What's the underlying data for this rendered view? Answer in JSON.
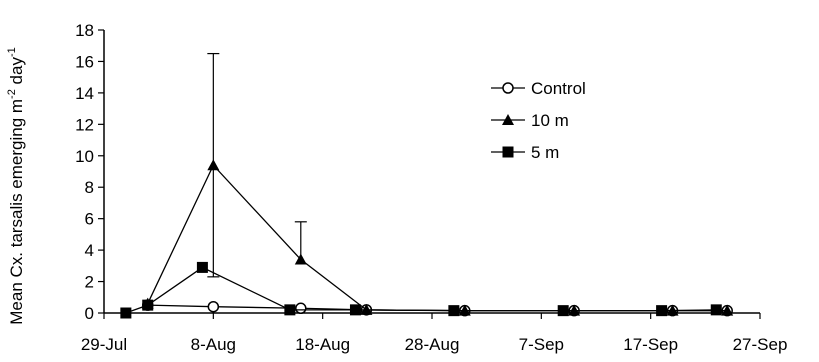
{
  "chart_data": {
    "type": "line",
    "title": "",
    "xlabel": "",
    "ylabel": "Mean Cx. tarsalis emerging m",
    "ylabel_sup1": "-2",
    "ylabel_mid": " day",
    "ylabel_sup2": "-1",
    "xlim": [
      "2000-07-29",
      "2000-09-27"
    ],
    "ylim": [
      0,
      18
    ],
    "x_ticks": [
      "29-Jul",
      "8-Aug",
      "18-Aug",
      "28-Aug",
      "7-Sep",
      "17-Sep",
      "27-Sep"
    ],
    "y_ticks": [
      "0",
      "2",
      "4",
      "6",
      "8",
      "10",
      "12",
      "14",
      "16",
      "18"
    ],
    "grid": false,
    "legend_position": "top-right",
    "series": [
      {
        "name": "Control",
        "marker": "circle-open",
        "x": [
          "2000-08-02",
          "2000-08-08",
          "2000-08-16",
          "2000-08-22",
          "2000-08-31",
          "2000-09-10",
          "2000-09-19",
          "2000-09-24"
        ],
        "y": [
          0.5,
          0.4,
          0.3,
          0.2,
          0.15,
          0.15,
          0.15,
          0.15
        ]
      },
      {
        "name": "10 m",
        "marker": "triangle-filled",
        "x": [
          "2000-08-02",
          "2000-08-08",
          "2000-08-16",
          "2000-08-22",
          "2000-08-31",
          "2000-09-10",
          "2000-09-19",
          "2000-09-24"
        ],
        "y": [
          0.6,
          9.4,
          3.4,
          0.2,
          0.15,
          0.15,
          0.15,
          0.15
        ],
        "error_upper": [
          null,
          16.5,
          5.8,
          null,
          null,
          null,
          null,
          null
        ],
        "error_lower": [
          null,
          2.3,
          null,
          null,
          null,
          null,
          null,
          null
        ]
      },
      {
        "name": "5 m",
        "marker": "square-filled",
        "x": [
          "2000-07-31",
          "2000-08-02",
          "2000-08-07",
          "2000-08-15",
          "2000-08-21",
          "2000-08-30",
          "2000-09-09",
          "2000-09-18",
          "2000-09-23"
        ],
        "y": [
          0.0,
          0.5,
          2.9,
          0.2,
          0.2,
          0.15,
          0.15,
          0.15,
          0.2
        ]
      }
    ]
  }
}
